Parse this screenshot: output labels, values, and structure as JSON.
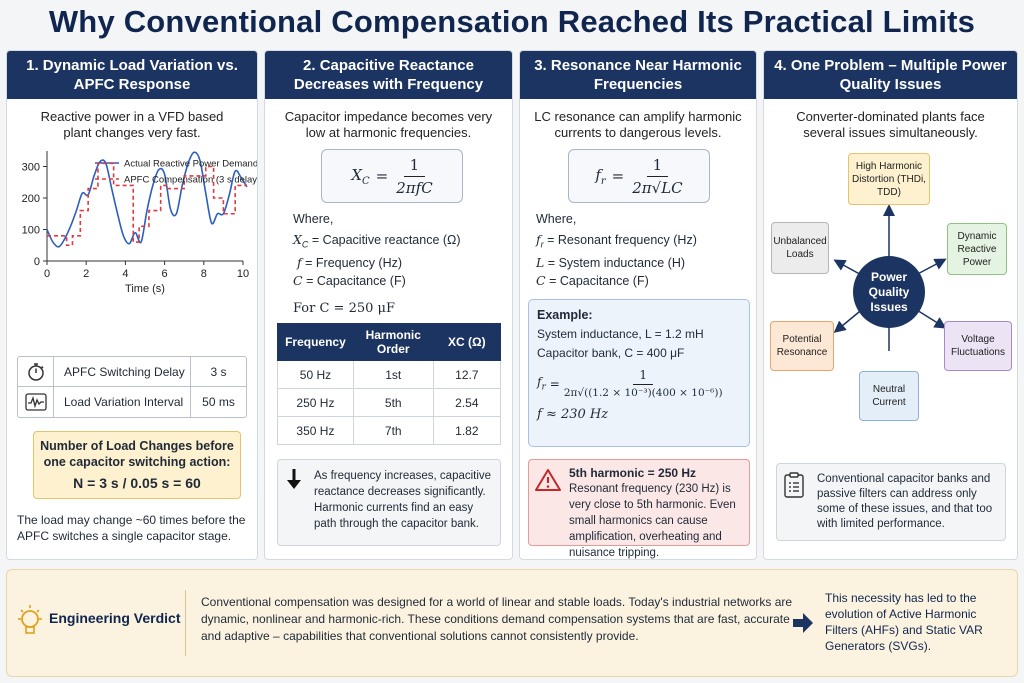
{
  "title": "Why Conventional Compensation Reached Its Practical Limits",
  "panel1": {
    "heading": "1. Dynamic Load Variation vs. APFC Response",
    "intro": "Reactive power in a VFD based plant changes very fast.",
    "stats": [
      {
        "icon": "stopwatch-icon",
        "label": "APFC Switching Delay",
        "value": "3 s"
      },
      {
        "icon": "waveform-icon",
        "label": "Load Variation Interval",
        "value": "50 ms"
      }
    ],
    "callout_title": "Number of Load Changes before one capacitor switching action:",
    "callout_formula": "N = 3 s / 0.05 s = 60",
    "conclusion": "The load may change ~60 times before the APFC switches a single capacitor stage."
  },
  "chart_data": {
    "type": "line",
    "ylabel": "kVAR",
    "xlabel": "Time (s)",
    "xlim": [
      0,
      10
    ],
    "ylim": [
      0,
      400
    ],
    "xticks": [
      0,
      2,
      4,
      6,
      8,
      10
    ],
    "yticks": [
      0,
      100,
      200,
      300,
      400
    ],
    "legend_position": "top-right",
    "series": [
      {
        "name": "Actual Reactive Power Demand",
        "color": "#2b5fbf",
        "style": "solid",
        "x": [
          0,
          0.3,
          0.6,
          0.9,
          1.2,
          1.5,
          1.8,
          2.1,
          2.4,
          2.7,
          3.0,
          3.3,
          3.6,
          3.9,
          4.2,
          4.5,
          4.8,
          5.1,
          5.4,
          5.7,
          6.0,
          6.3,
          6.6,
          6.9,
          7.2,
          7.5,
          7.8,
          8.1,
          8.4,
          8.7,
          9.0,
          9.3,
          9.6,
          9.9,
          10.2
        ],
        "y": [
          100,
          60,
          45,
          70,
          110,
          160,
          215,
          210,
          270,
          315,
          310,
          230,
          150,
          80,
          55,
          90,
          60,
          160,
          240,
          290,
          275,
          165,
          150,
          240,
          310,
          345,
          320,
          215,
          120,
          150,
          150,
          210,
          285,
          265,
          235
        ]
      },
      {
        "name": "APFC Compensation (3 s delay)",
        "color": "#e0393e",
        "style": "dashed",
        "x": [
          0,
          1.0,
          1.0,
          1.3,
          1.3,
          1.7,
          1.7,
          2.1,
          2.1,
          2.6,
          2.6,
          3.4,
          3.4,
          4.4,
          4.4,
          4.7,
          4.7,
          5.2,
          5.2,
          5.8,
          5.8,
          6.1,
          6.1,
          7.0,
          7.0,
          8.1,
          8.1,
          8.5,
          8.5,
          9.0,
          9.0,
          9.6,
          9.6,
          10.2
        ],
        "y": [
          80,
          80,
          50,
          50,
          80,
          80,
          160,
          160,
          230,
          230,
          310,
          310,
          240,
          240,
          60,
          60,
          110,
          110,
          160,
          160,
          240,
          240,
          230,
          230,
          270,
          270,
          300,
          300,
          200,
          200,
          150,
          150,
          240,
          240
        ]
      }
    ]
  },
  "panel2": {
    "heading": "2. Capacitive Reactance Decreases with Frequency",
    "intro": "Capacitor impedance becomes very low at harmonic frequencies.",
    "formula_lhs": "X",
    "formula_lhs_sub": "C",
    "formula_num": "1",
    "formula_den": "2πfC",
    "where": "Where,",
    "defs": [
      {
        "sym": "X",
        "sub": "C",
        "text": "= Capacitive reactance (Ω)"
      },
      {
        "sym": "f",
        "sub": "",
        "text": "= Frequency (Hz)"
      },
      {
        "sym": "C",
        "sub": "",
        "text": "= Capacitance (F)"
      }
    ],
    "for_c": "For C = 250 μF",
    "table_headers": [
      "Frequency",
      "Harmonic Order",
      "XC (Ω)"
    ],
    "table_rows": [
      [
        "50 Hz",
        "1st",
        "12.7"
      ],
      [
        "250 Hz",
        "5th",
        "2.54"
      ],
      [
        "350 Hz",
        "7th",
        "1.82"
      ]
    ],
    "note": "As frequency increases, capacitive reactance decreases significantly. Harmonic currents find an easy path through the capacitor bank."
  },
  "panel3": {
    "heading": "3. Resonance Near Harmonic Frequencies",
    "intro": "LC resonance can amplify harmonic currents to dangerous levels.",
    "formula_lhs": "f",
    "formula_lhs_sub": "r",
    "formula_num": "1",
    "formula_den": "2π√LC",
    "where": "Where,",
    "defs": [
      {
        "sym": "f",
        "sub": "r",
        "text": "= Resonant frequency (Hz)"
      },
      {
        "sym": "L",
        "sub": "",
        "text": "= System inductance (H)"
      },
      {
        "sym": "C",
        "sub": "",
        "text": "= Capacitance (F)"
      }
    ],
    "example_title": "Example:",
    "example_l": "System inductance, L = 1.2 mH",
    "example_c": "Capacitor bank, C = 400 μF",
    "example_den": "2π√((1.2 × 10⁻³)(400 × 10⁻⁶))",
    "example_result": "f  ≈  230 Hz",
    "warn_title": "5th harmonic = 250 Hz",
    "warn_text": "Resonant frequency (230 Hz) is very close to 5th harmonic. Even small harmonics can cause amplification, overheating and nuisance tripping."
  },
  "panel4": {
    "heading": "4. One Problem – Multiple Power Quality Issues",
    "intro": "Converter-dominated plants face several issues simultaneously.",
    "hub": "Power Quality Issues",
    "nodes": [
      {
        "label": "High Harmonic Distortion (THDi, TDD)",
        "color": "#fdf1cf",
        "border": "#e6c46b"
      },
      {
        "label": "Dynamic Reactive Power",
        "color": "#e5f4e2",
        "border": "#8cc482"
      },
      {
        "label": "Voltage Fluctuations",
        "color": "#ece3f5",
        "border": "#a88ac9"
      },
      {
        "label": "Neutral Current",
        "color": "#e4eef9",
        "border": "#8fb2da"
      },
      {
        "label": "Potential Resonance",
        "color": "#fde8d6",
        "border": "#e8a56e"
      },
      {
        "label": "Unbalanced Loads",
        "color": "#ececec",
        "border": "#b5b5b5"
      }
    ],
    "note": "Conventional capacitor banks and passive filters can address only some of these issues, and that too with limited performance."
  },
  "verdict": {
    "title": "Engineering Verdict",
    "text": "Conventional compensation was designed for a world of linear and stable loads. Today's industrial networks are dynamic, nonlinear and harmonic-rich. These conditions demand compensation systems that are fast, accurate and adaptive – capabilities that conventional solutions cannot consistently provide.",
    "conclusion": "This necessity has led to the evolution of Active Harmonic Filters (AHFs) and Static VAR Generators (SVGs)."
  }
}
